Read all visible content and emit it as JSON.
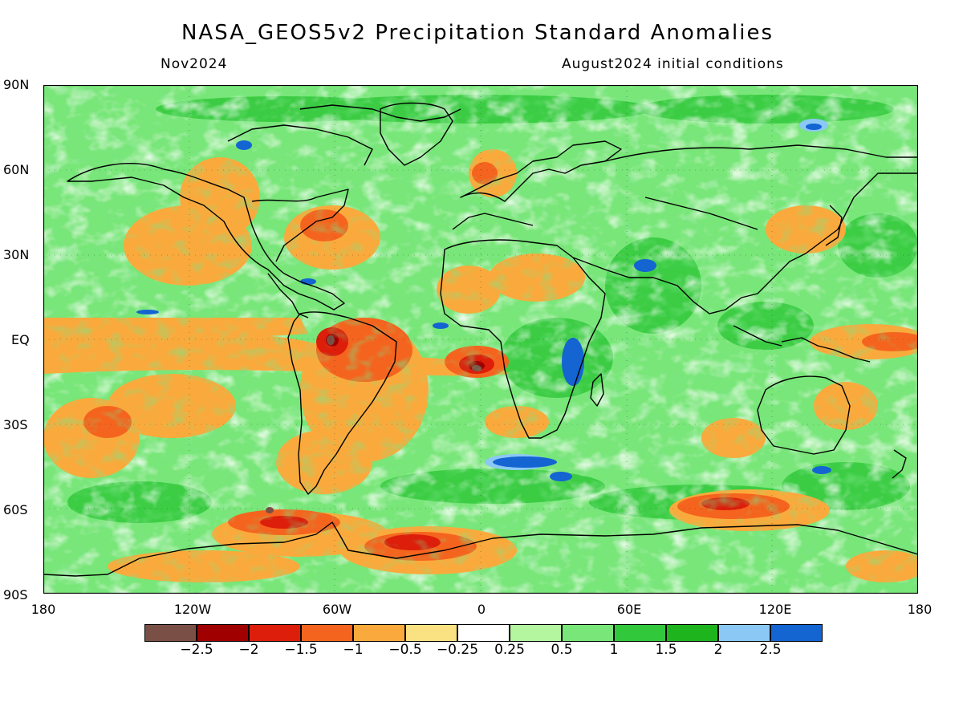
{
  "title": "NASA_GEOS5v2 Precipitation Standard Anomalies",
  "subtitle_left": "Nov2024",
  "subtitle_right": "August2024 initial conditions",
  "lat_labels": [
    "90N",
    "60N",
    "30N",
    "EQ",
    "30S",
    "60S",
    "90S"
  ],
  "lon_labels": [
    "180",
    "120W",
    "60W",
    "0",
    "60E",
    "120E",
    "180"
  ],
  "colorbar": {
    "labels": [
      "−2.5",
      "−2",
      "−1.5",
      "−1",
      "−0.5",
      "−0.25",
      "0.25",
      "0.5",
      "1",
      "1.5",
      "2",
      "2.5"
    ],
    "colors": [
      "#7a5046",
      "#a00000",
      "#dc1e0a",
      "#f5641e",
      "#faaa3c",
      "#fae182",
      "#ffffff",
      "#b4f5a0",
      "#78e678",
      "#32c83c",
      "#1eb41e",
      "#8cc8f5",
      "#1464d2"
    ]
  },
  "palette": {
    "background": "#78e678",
    "anomaly_shades": [
      "#1eb41e",
      "#32c83c",
      "#b4f5a0",
      "#ffffff",
      "#fae182",
      "#faaa3c",
      "#f5641e",
      "#dc1e0a",
      "#a00000",
      "#7a5046",
      "#1464d2",
      "#8cc8f5"
    ]
  }
}
